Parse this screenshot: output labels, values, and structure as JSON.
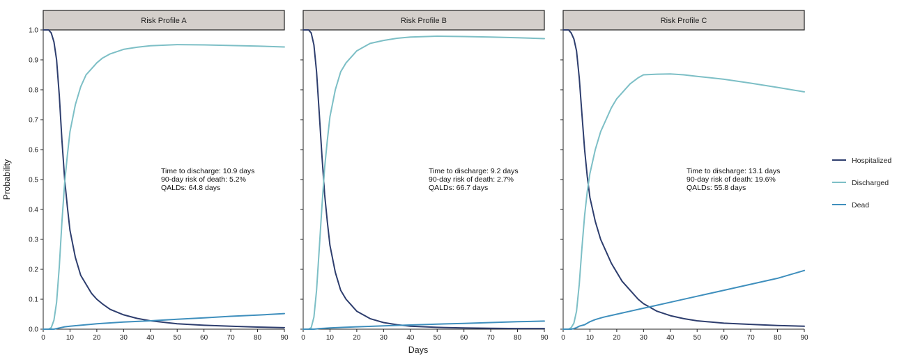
{
  "chart_data": {
    "type": "line",
    "xlabel": "Days",
    "ylabel": "Probability",
    "xlim": [
      0,
      90
    ],
    "ylim": [
      0,
      1
    ],
    "x_ticks": [
      0,
      10,
      20,
      30,
      40,
      50,
      60,
      70,
      80,
      90
    ],
    "y_ticks": [
      0.0,
      0.1,
      0.2,
      0.3,
      0.4,
      0.5,
      0.6,
      0.7,
      0.8,
      0.9,
      1.0
    ],
    "legend": {
      "position": "right",
      "items": [
        {
          "name": "Hospitalized",
          "color": "#2e3e6e"
        },
        {
          "name": "Discharged",
          "color": "#7dbfc6"
        },
        {
          "name": "Dead",
          "color": "#3f8fbd"
        }
      ]
    },
    "panels": [
      {
        "title": "Risk Profile A",
        "annotation": [
          "Time to discharge: 10.9 days",
          "90-day risk of death: 5.2%",
          "QALDs: 64.8 days"
        ],
        "series": [
          {
            "name": "Hospitalized",
            "x": [
              0,
              2,
              3,
              4,
              5,
              6,
              7,
              8,
              9,
              10,
              12,
              14,
              16,
              18,
              20,
              22,
              25,
              30,
              35,
              40,
              50,
              60,
              70,
              80,
              90
            ],
            "y": [
              1.0,
              1.0,
              0.99,
              0.96,
              0.9,
              0.78,
              0.63,
              0.5,
              0.41,
              0.33,
              0.24,
              0.18,
              0.15,
              0.12,
              0.1,
              0.085,
              0.066,
              0.048,
              0.036,
              0.028,
              0.018,
              0.013,
              0.01,
              0.007,
              0.005
            ]
          },
          {
            "name": "Discharged",
            "x": [
              0,
              2,
              3,
              4,
              5,
              6,
              7,
              8,
              9,
              10,
              12,
              14,
              16,
              18,
              20,
              22,
              25,
              30,
              35,
              40,
              50,
              60,
              70,
              80,
              90
            ],
            "y": [
              0.0,
              0.0,
              0.005,
              0.03,
              0.09,
              0.21,
              0.36,
              0.49,
              0.58,
              0.66,
              0.75,
              0.81,
              0.85,
              0.87,
              0.89,
              0.905,
              0.92,
              0.935,
              0.942,
              0.947,
              0.951,
              0.95,
              0.948,
              0.946,
              0.943
            ]
          },
          {
            "name": "Dead",
            "x": [
              0,
              2,
              3,
              4,
              5,
              6,
              8,
              10,
              15,
              20,
              30,
              40,
              50,
              60,
              70,
              80,
              90
            ],
            "y": [
              0.0,
              0.0,
              0.0,
              0.0,
              0.002,
              0.004,
              0.008,
              0.01,
              0.014,
              0.018,
              0.024,
              0.028,
              0.033,
              0.038,
              0.043,
              0.047,
              0.052
            ]
          }
        ]
      },
      {
        "title": "Risk Profile B",
        "annotation": [
          "Time to discharge: 9.2 days",
          "90-day risk of death: 2.7%",
          "QALDs: 66.7 days"
        ],
        "series": [
          {
            "name": "Hospitalized",
            "x": [
              0,
              2,
              3,
              4,
              5,
              6,
              7,
              8,
              9,
              10,
              12,
              14,
              16,
              18,
              20,
              22,
              25,
              30,
              35,
              40,
              50,
              60,
              70,
              80,
              90
            ],
            "y": [
              1.0,
              1.0,
              0.99,
              0.95,
              0.86,
              0.72,
              0.58,
              0.45,
              0.36,
              0.28,
              0.19,
              0.13,
              0.1,
              0.08,
              0.06,
              0.05,
              0.035,
              0.022,
              0.015,
              0.01,
              0.006,
              0.004,
              0.003,
              0.002,
              0.002
            ]
          },
          {
            "name": "Discharged",
            "x": [
              0,
              2,
              3,
              4,
              5,
              6,
              7,
              8,
              9,
              10,
              12,
              14,
              16,
              18,
              20,
              22,
              25,
              30,
              35,
              40,
              50,
              60,
              70,
              80,
              90
            ],
            "y": [
              0.0,
              0.0,
              0.005,
              0.04,
              0.13,
              0.27,
              0.41,
              0.54,
              0.63,
              0.71,
              0.8,
              0.86,
              0.89,
              0.91,
              0.93,
              0.94,
              0.955,
              0.965,
              0.972,
              0.976,
              0.979,
              0.978,
              0.976,
              0.974,
              0.971
            ]
          },
          {
            "name": "Dead",
            "x": [
              0,
              2,
              3,
              4,
              5,
              6,
              8,
              10,
              15,
              20,
              30,
              40,
              50,
              60,
              70,
              80,
              90
            ],
            "y": [
              0.0,
              0.0,
              0.0,
              0.0,
              0.001,
              0.002,
              0.003,
              0.004,
              0.006,
              0.008,
              0.011,
              0.014,
              0.017,
              0.019,
              0.022,
              0.025,
              0.027
            ]
          }
        ]
      },
      {
        "title": "Risk Profile C",
        "annotation": [
          "Time to discharge: 13.1 days",
          "90-day risk of death: 19.6%",
          "QALDs: 55.8 days"
        ],
        "series": [
          {
            "name": "Hospitalized",
            "x": [
              0,
              2,
              3,
              4,
              5,
              6,
              7,
              8,
              9,
              10,
              12,
              14,
              16,
              18,
              20,
              22,
              25,
              28,
              30,
              35,
              40,
              45,
              50,
              60,
              70,
              80,
              90
            ],
            "y": [
              1.0,
              1.0,
              0.99,
              0.97,
              0.93,
              0.84,
              0.72,
              0.6,
              0.51,
              0.44,
              0.36,
              0.3,
              0.26,
              0.22,
              0.19,
              0.16,
              0.13,
              0.1,
              0.085,
              0.06,
              0.045,
              0.035,
              0.028,
              0.02,
              0.016,
              0.012,
              0.01
            ]
          },
          {
            "name": "Discharged",
            "x": [
              0,
              2,
              3,
              4,
              5,
              6,
              7,
              8,
              9,
              10,
              12,
              14,
              16,
              18,
              20,
              22,
              25,
              28,
              30,
              35,
              40,
              45,
              50,
              60,
              70,
              80,
              90
            ],
            "y": [
              0.0,
              0.0,
              0.005,
              0.02,
              0.06,
              0.15,
              0.27,
              0.38,
              0.46,
              0.52,
              0.6,
              0.66,
              0.7,
              0.74,
              0.77,
              0.79,
              0.82,
              0.84,
              0.85,
              0.852,
              0.853,
              0.85,
              0.845,
              0.835,
              0.822,
              0.808,
              0.793
            ]
          },
          {
            "name": "Dead",
            "x": [
              0,
              2,
              3,
              4,
              5,
              6,
              8,
              10,
              12,
              15,
              20,
              25,
              30,
              35,
              40,
              50,
              60,
              70,
              80,
              90
            ],
            "y": [
              0.0,
              0.0,
              0.0,
              0.002,
              0.005,
              0.01,
              0.015,
              0.025,
              0.032,
              0.04,
              0.05,
              0.06,
              0.07,
              0.08,
              0.09,
              0.11,
              0.13,
              0.15,
              0.17,
              0.196
            ]
          }
        ]
      }
    ]
  }
}
